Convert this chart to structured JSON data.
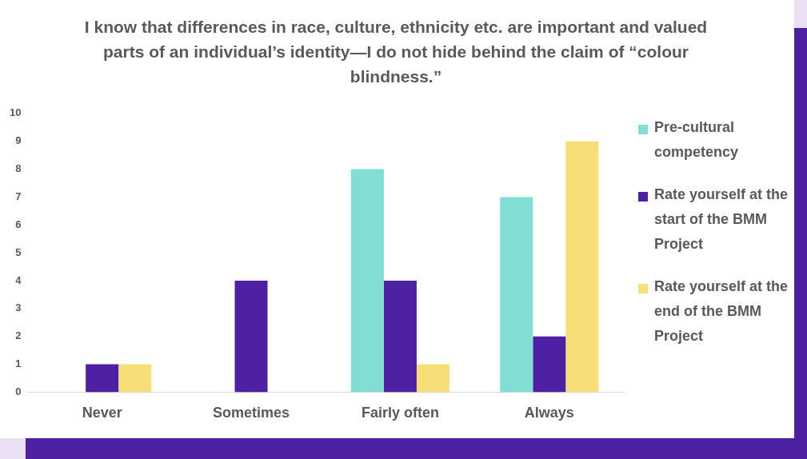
{
  "chart_data": {
    "type": "bar",
    "title": "I know that differences in race, culture, ethnicity etc. are important and valued parts of an individual’s identity—I do not hide behind the claim of “colour blindness.”",
    "categories": [
      "Never",
      "Sometimes",
      "Fairly often",
      "Always"
    ],
    "series": [
      {
        "name": "Pre-cultural competency",
        "color": "#80dfd2",
        "values": [
          0,
          0,
          8,
          7
        ]
      },
      {
        "name": "Rate yourself at the start of the BMM Project",
        "color": "#4d1fa3",
        "values": [
          1,
          4,
          4,
          2
        ]
      },
      {
        "name": "Rate yourself at the end of the BMM Project",
        "color": "#f7df78",
        "values": [
          1,
          0,
          1,
          9
        ]
      }
    ],
    "ylim": [
      0,
      10
    ],
    "yticks": [
      0,
      1,
      2,
      3,
      4,
      5,
      6,
      7,
      8,
      9,
      10
    ],
    "grid": false,
    "legend": "right"
  }
}
